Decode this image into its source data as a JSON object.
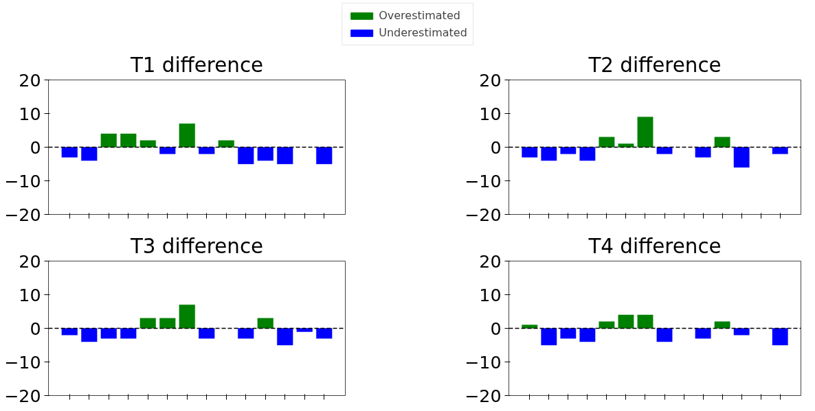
{
  "chart_data": [
    {
      "type": "bar",
      "title": "T1 difference",
      "categories": [
        null,
        null,
        null,
        null,
        null,
        null,
        null,
        null,
        null,
        null,
        null,
        null,
        null,
        null
      ],
      "series": [
        {
          "name": "Overestimated",
          "color": "#008000",
          "values": [
            null,
            null,
            4,
            4,
            2,
            null,
            7,
            null,
            2,
            null,
            null,
            null,
            null,
            null
          ]
        },
        {
          "name": "Underestimated",
          "color": "#0000ff",
          "values": [
            -3,
            -4,
            null,
            null,
            null,
            -2,
            null,
            -2,
            null,
            -5,
            -4,
            -5,
            null,
            -5
          ]
        }
      ],
      "ylim": [
        -20,
        20
      ],
      "yticks": [
        -20,
        -10,
        0,
        10,
        20
      ],
      "tick_labels": "y",
      "legend": "top",
      "ref_lines": [
        {
          "axis": "y",
          "value": 0,
          "color": "#000000",
          "line_style": "dashed"
        }
      ]
    },
    {
      "type": "bar",
      "title": "T2 difference",
      "categories": [
        null,
        null,
        null,
        null,
        null,
        null,
        null,
        null,
        null,
        null,
        null,
        null,
        null,
        null
      ],
      "series": [
        {
          "color": "#008000",
          "values": [
            null,
            null,
            null,
            null,
            3,
            1,
            9,
            null,
            null,
            null,
            3,
            null,
            null,
            null
          ]
        },
        {
          "color": "#0000ff",
          "values": [
            -3,
            -4,
            -2,
            -4,
            null,
            null,
            null,
            -2,
            null,
            -3,
            null,
            -6,
            null,
            -2
          ]
        }
      ],
      "ylim": [
        -20,
        20
      ],
      "yticks": [
        -20,
        -10,
        0,
        10,
        20
      ],
      "tick_labels": "y",
      "ref_lines": [
        {
          "axis": "y",
          "value": 0,
          "color": "#000000",
          "line_style": "dashed"
        }
      ]
    },
    {
      "type": "bar",
      "title": "T3 difference",
      "categories": [
        null,
        null,
        null,
        null,
        null,
        null,
        null,
        null,
        null,
        null,
        null,
        null,
        null,
        null
      ],
      "series": [
        {
          "color": "#008000",
          "values": [
            null,
            null,
            null,
            null,
            3,
            3,
            7,
            null,
            null,
            null,
            3,
            null,
            null,
            null
          ]
        },
        {
          "color": "#0000ff",
          "values": [
            -2,
            -4,
            -3,
            -3,
            null,
            null,
            null,
            -3,
            null,
            -3,
            null,
            -5,
            -1,
            -3
          ]
        }
      ],
      "ylim": [
        -20,
        20
      ],
      "yticks": [
        -20,
        -10,
        0,
        10,
        20
      ],
      "tick_labels": "y",
      "ref_lines": [
        {
          "axis": "y",
          "value": 0,
          "color": "#000000",
          "line_style": "dashed"
        }
      ]
    },
    {
      "type": "bar",
      "title": "T4 difference",
      "categories": [
        null,
        null,
        null,
        null,
        null,
        null,
        null,
        null,
        null,
        null,
        null,
        null,
        null,
        null
      ],
      "series": [
        {
          "color": "#008000",
          "values": [
            1,
            null,
            null,
            null,
            2,
            4,
            4,
            null,
            null,
            null,
            2,
            null,
            null,
            null
          ]
        },
        {
          "color": "#0000ff",
          "values": [
            null,
            -5,
            -3,
            -4,
            null,
            null,
            null,
            -4,
            null,
            -3,
            null,
            -2,
            null,
            -5
          ]
        }
      ],
      "ylim": [
        -20,
        20
      ],
      "yticks": [
        -20,
        -10,
        0,
        10,
        20
      ],
      "tick_labels": "y",
      "ref_lines": [
        {
          "axis": "y",
          "value": 0,
          "color": "#000000",
          "line_style": "dashed"
        }
      ]
    }
  ]
}
